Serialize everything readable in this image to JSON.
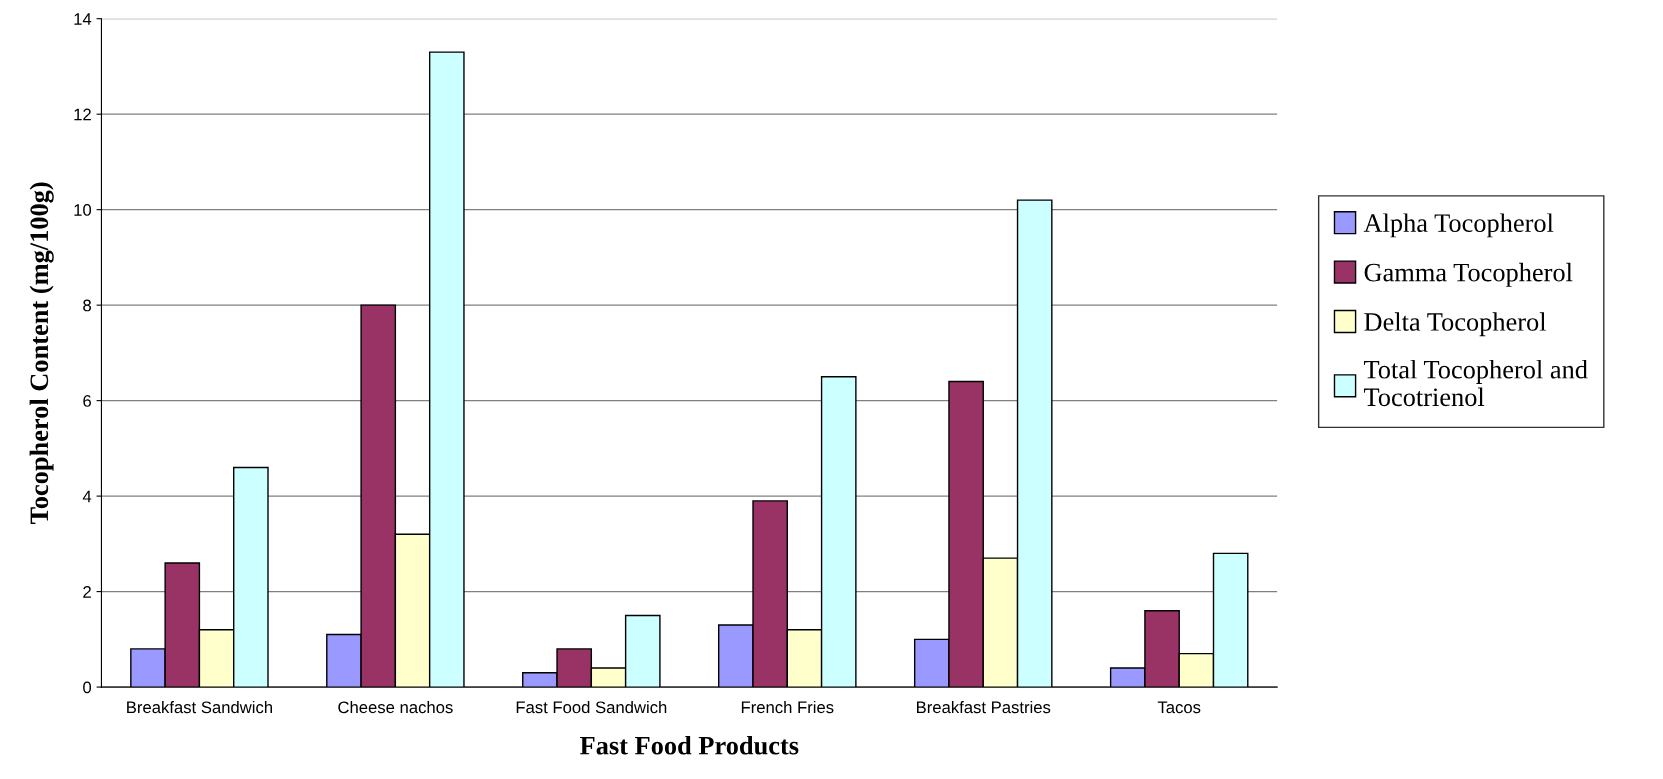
{
  "chart_data": {
    "type": "bar",
    "xlabel": "Fast Food Products",
    "ylabel": "Tocopherol Content (mg/100g)",
    "categories": [
      "Breakfast Sandwich",
      "Cheese nachos",
      "Fast Food Sandwich",
      "French Fries",
      "Breakfast Pastries",
      "Tacos"
    ],
    "series": [
      {
        "name": "Alpha Tocopherol",
        "color": "#9999ff",
        "values": [
          0.8,
          1.1,
          0.3,
          1.3,
          1.0,
          0.4
        ]
      },
      {
        "name": "Gamma Tocopherol",
        "color": "#993366",
        "values": [
          2.6,
          8.0,
          0.8,
          3.9,
          6.4,
          1.6
        ]
      },
      {
        "name": "Delta Tocopherol",
        "color": "#ffffcc",
        "values": [
          1.2,
          3.2,
          0.4,
          1.2,
          2.7,
          0.7
        ]
      },
      {
        "name": "Total Tocopherol and\nTocotrienol",
        "color": "#ccffff",
        "values": [
          4.6,
          13.3,
          1.5,
          6.5,
          10.2,
          2.8
        ]
      }
    ],
    "ylim": [
      0,
      14
    ],
    "yticks": [
      0,
      2,
      4,
      6,
      8,
      10,
      12,
      14
    ],
    "grid": "y",
    "legend": "right"
  }
}
